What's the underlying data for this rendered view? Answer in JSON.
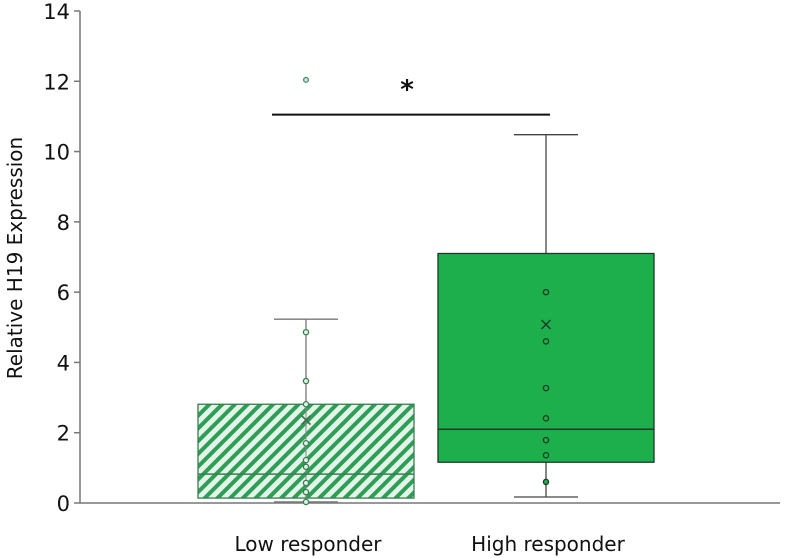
{
  "chart_data": {
    "type": "box",
    "title": "",
    "xlabel": "",
    "ylabel": "Relative H19  Expression",
    "ylim": [
      0,
      14
    ],
    "yticks": [
      0,
      2,
      4,
      6,
      8,
      10,
      12,
      14
    ],
    "ytick_labels": [
      "0",
      "2",
      "4",
      "6",
      "8",
      "10",
      "12",
      "14"
    ],
    "grid": false,
    "categories": [
      "Low responder",
      "High responder"
    ],
    "groups": [
      {
        "category": "Low responder",
        "fill": "hatched",
        "color": "#2e9e57",
        "whisker_low": 0.03,
        "q1": 0.14,
        "median": 0.82,
        "q3": 2.81,
        "whisker_high": 5.23,
        "mean": 2.36,
        "points": [
          4.86,
          3.47,
          2.81,
          1.7,
          1.22,
          1.03,
          0.57,
          0.31,
          0.03
        ],
        "outliers": [
          12.04
        ]
      },
      {
        "category": "High responder",
        "fill": "solid",
        "color": "#1caf4c",
        "whisker_low": 0.17,
        "q1": 1.16,
        "median": 2.1,
        "q3": 7.1,
        "whisker_high": 10.48,
        "mean": 5.08,
        "points": [
          6.0,
          4.6,
          3.27,
          2.41,
          1.79,
          1.36,
          0.6
        ],
        "outliers": []
      }
    ],
    "annotations": [
      {
        "type": "significance-bracket",
        "between": [
          "Low responder",
          "High responder"
        ],
        "y": 11.05,
        "label": "*"
      }
    ]
  }
}
